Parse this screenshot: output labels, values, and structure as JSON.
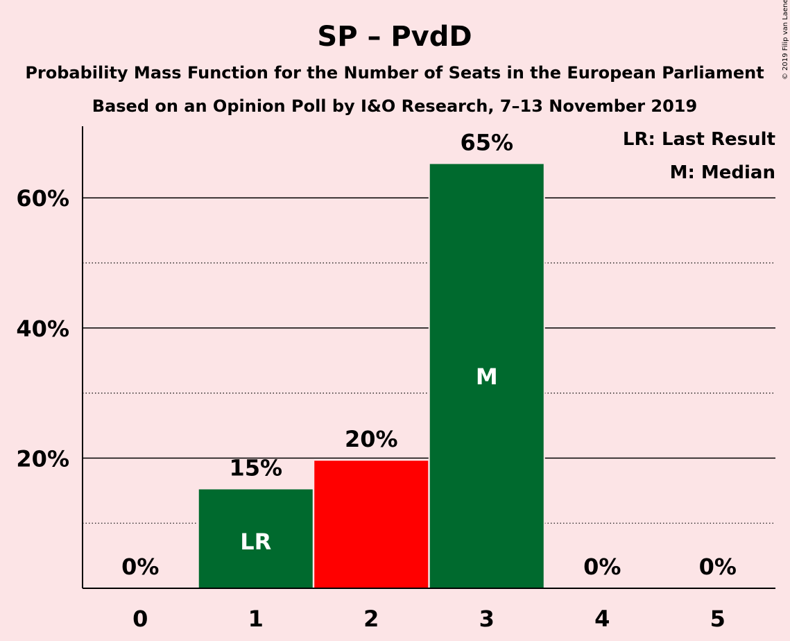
{
  "header": {
    "title": "SP – PvdD",
    "subtitle": "Probability Mass Function for the Number of Seats in the European Parliament",
    "subtitle2": "Based on an Opinion Poll by I&O Research, 7–13 November 2019",
    "copyright": "© 2019 Filip van Laenen"
  },
  "legend": {
    "lr": "LR: Last Result",
    "m": "M: Median"
  },
  "colors": {
    "background": "#fce4e6",
    "green": "#006a2e",
    "red": "#ff0000"
  },
  "chart_data": {
    "type": "bar",
    "categories": [
      "0",
      "1",
      "2",
      "3",
      "4",
      "5"
    ],
    "values": [
      0,
      15.2,
      19.6,
      65.2,
      0,
      0
    ],
    "value_labels": [
      "0%",
      "15%",
      "20%",
      "65%",
      "0%",
      "0%"
    ],
    "bar_colors": [
      "#006a2e",
      "#006a2e",
      "#ff0000",
      "#006a2e",
      "#006a2e",
      "#006a2e"
    ],
    "inbar_labels": [
      "",
      "LR",
      "",
      "M",
      "",
      ""
    ],
    "ylim": [
      0,
      70
    ],
    "yticks_major": [
      20,
      40,
      60
    ],
    "ytick_labels": [
      "20%",
      "40%",
      "60%"
    ],
    "yticks_minor": [
      10,
      30,
      50
    ],
    "grid": true,
    "legend_position": "top-right"
  }
}
